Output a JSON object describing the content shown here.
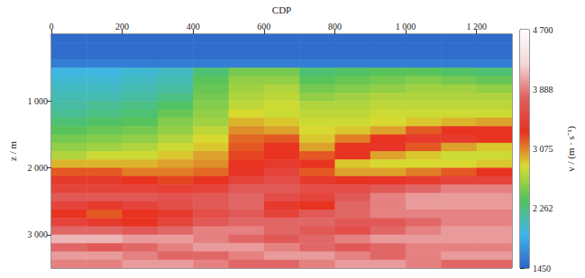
{
  "chart_data": {
    "type": "heatmap",
    "x_label": "CDP",
    "y_label": "z / m",
    "xlim": [
      0,
      1300
    ],
    "xticks": [
      0,
      200,
      400,
      600,
      800,
      {
        "value": 1000,
        "label": "1 000"
      },
      {
        "value": 1200,
        "label": "1 200"
      }
    ],
    "ylim": [
      0,
      3500
    ],
    "yticks": [
      {
        "value": 1000,
        "label": "1 000"
      },
      {
        "value": 2000,
        "label": "2 000"
      },
      {
        "value": 3000,
        "label": "3 000"
      }
    ],
    "grid": false,
    "cells": {
      "x": [
        50,
        150,
        250,
        350,
        450,
        550,
        650,
        750,
        850,
        950,
        1050,
        1150,
        1250
      ],
      "z": [
        62.5,
        187.5,
        312.5,
        437.5,
        562.5,
        687.5,
        812.5,
        937.5,
        1062.5,
        1187.5,
        1312.5,
        1437.5,
        1562.5,
        1687.5,
        1812.5,
        1937.5,
        2062.5,
        2187.5,
        2312.5,
        2437.5,
        2562.5,
        2687.5,
        2812.5,
        2937.5,
        3062.5,
        3187.5,
        3312.5,
        3437.5
      ],
      "values": [
        [
          1500,
          1500,
          1500,
          1500,
          1500,
          1500,
          1500,
          1500,
          1500,
          1500,
          1500,
          1500,
          1500
        ],
        [
          1500,
          1500,
          1500,
          1500,
          1500,
          1500,
          1500,
          1500,
          1500,
          1500,
          1500,
          1500,
          1500
        ],
        [
          1500,
          1500,
          1500,
          1500,
          1500,
          1500,
          1500,
          1500,
          1500,
          1500,
          1500,
          1500,
          1500
        ],
        [
          1600,
          1600,
          1600,
          1600,
          1600,
          1600,
          1600,
          1600,
          1600,
          1600,
          1600,
          1600,
          1600
        ],
        [
          1950,
          1950,
          2000,
          2050,
          2300,
          2500,
          2500,
          2300,
          2350,
          2400,
          2400,
          2350,
          2300
        ],
        [
          2000,
          2000,
          2050,
          2100,
          2400,
          2600,
          2600,
          2400,
          2450,
          2500,
          2550,
          2500,
          2450
        ],
        [
          2050,
          2050,
          2100,
          2150,
          2450,
          2650,
          2700,
          2500,
          2550,
          2600,
          2650,
          2650,
          2600
        ],
        [
          2100,
          2100,
          2150,
          2250,
          2500,
          2700,
          2750,
          2600,
          2650,
          2700,
          2700,
          2700,
          2700
        ],
        [
          2150,
          2200,
          2250,
          2350,
          2550,
          2750,
          2800,
          2700,
          2700,
          2750,
          2750,
          2750,
          2750
        ],
        [
          2200,
          2250,
          2300,
          2450,
          2600,
          2850,
          2800,
          2750,
          2750,
          2800,
          2800,
          2800,
          2800
        ],
        [
          2300,
          2350,
          2400,
          2550,
          2650,
          2950,
          2900,
          2800,
          2800,
          2850,
          2900,
          2950,
          3000
        ],
        [
          2400,
          2450,
          2500,
          2600,
          2750,
          3050,
          3000,
          2850,
          2900,
          3000,
          3200,
          3300,
          3300
        ],
        [
          2500,
          2550,
          2600,
          2700,
          2850,
          3150,
          3200,
          2900,
          3100,
          3300,
          3400,
          3400,
          3300
        ],
        [
          2600,
          2650,
          2700,
          2800,
          2900,
          3200,
          3300,
          3000,
          3300,
          3350,
          3200,
          3000,
          2900
        ],
        [
          2700,
          2800,
          2800,
          2900,
          3000,
          3250,
          3300,
          3200,
          3300,
          3000,
          2900,
          2800,
          2800
        ],
        [
          2950,
          2950,
          2950,
          3000,
          3050,
          3300,
          3400,
          3300,
          2900,
          2850,
          2850,
          2850,
          2900
        ],
        [
          3200,
          3200,
          3100,
          3100,
          3150,
          3350,
          3500,
          3200,
          3000,
          3000,
          3100,
          3200,
          3300
        ],
        [
          3400,
          3400,
          3300,
          3250,
          3300,
          3500,
          3600,
          3400,
          3300,
          3350,
          3400,
          3500,
          3500
        ],
        [
          3500,
          3500,
          3500,
          3450,
          3500,
          3700,
          3700,
          3600,
          3600,
          3700,
          3800,
          3900,
          3900
        ],
        [
          3700,
          3700,
          3700,
          3650,
          3700,
          3800,
          3600,
          3500,
          3700,
          3900,
          4000,
          4000,
          4000
        ],
        [
          3500,
          3400,
          3500,
          3600,
          3700,
          3800,
          3400,
          3300,
          3800,
          3900,
          4000,
          4000,
          4000
        ],
        [
          3300,
          3200,
          3300,
          3400,
          3600,
          3700,
          3500,
          3700,
          3800,
          3900,
          3900,
          3900,
          3900
        ],
        [
          3500,
          3400,
          3300,
          3500,
          3700,
          3800,
          3800,
          3800,
          3700,
          3700,
          3800,
          3900,
          3900
        ],
        [
          3800,
          3800,
          3700,
          3800,
          3900,
          3900,
          3800,
          3700,
          3600,
          3800,
          3900,
          4000,
          4000
        ],
        [
          4100,
          4100,
          4000,
          4000,
          3900,
          3800,
          3700,
          3800,
          3900,
          4000,
          4000,
          4000,
          4000
        ],
        [
          3800,
          3700,
          3800,
          3900,
          4000,
          4000,
          3900,
          3800,
          3700,
          3800,
          3900,
          3900,
          3900
        ],
        [
          4000,
          4000,
          3900,
          3800,
          3800,
          3900,
          4000,
          4000,
          3900,
          3800,
          3900,
          4000,
          4000
        ],
        [
          3900,
          3900,
          4000,
          4000,
          3900,
          3800,
          3800,
          3900,
          4000,
          4000,
          3900,
          3800,
          3800
        ]
      ]
    },
    "colorbar": {
      "label": "v / (m · s⁻¹)",
      "range": [
        1450,
        4700
      ],
      "ticks": [
        1450,
        {
          "value": 2262,
          "label": "2 262"
        },
        {
          "value": 3075,
          "label": "3 075"
        },
        {
          "value": 3888,
          "label": "3 888"
        },
        {
          "value": 4700,
          "label": "4 700"
        }
      ]
    }
  }
}
